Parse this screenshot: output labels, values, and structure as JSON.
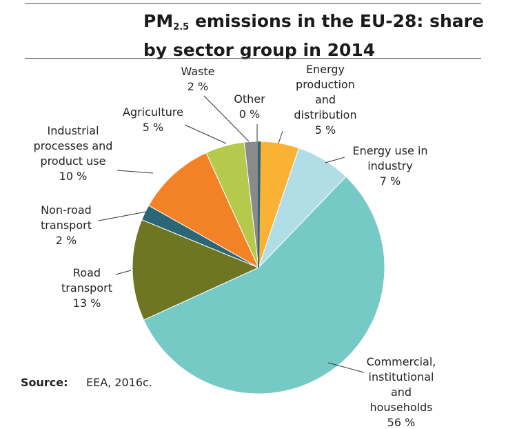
{
  "title": {
    "prefix": "PM",
    "subscript": "2.5",
    "rest": " emissions in the EU-28: share by sector group in 2014"
  },
  "source": {
    "label": "Source:",
    "text": "EEA, 2016c."
  },
  "chart_data": {
    "type": "pie",
    "title": "PM2.5 emissions in the EU-28: share by sector group in 2014",
    "unit": "%",
    "slices": [
      {
        "name": "Energy production and distribution",
        "value": 5,
        "color": "#f9b233",
        "label_lines": [
          "Energy",
          "production",
          "and",
          "distribution",
          "5 %"
        ]
      },
      {
        "name": "Energy use in industry",
        "value": 7,
        "color": "#b0dde6",
        "label_lines": [
          "Energy use in",
          "industry",
          "7 %"
        ]
      },
      {
        "name": "Commercial, institutional and households",
        "value": 56,
        "color": "#75cac6",
        "label_lines": [
          "Commercial,",
          "institutional",
          "and",
          "households",
          "56 %"
        ]
      },
      {
        "name": "Road transport",
        "value": 13,
        "color": "#6e7523",
        "label_lines": [
          "Road",
          "transport",
          "13 %"
        ]
      },
      {
        "name": "Non-road transport",
        "value": 2,
        "color": "#2b6677",
        "label_lines": [
          "Non-road",
          "transport",
          "2 %"
        ]
      },
      {
        "name": "Industrial processes and product use",
        "value": 10,
        "color": "#f38125",
        "label_lines": [
          "Industrial",
          "processes and",
          "product use",
          "10 %"
        ]
      },
      {
        "name": "Agriculture",
        "value": 5,
        "color": "#b5c94c",
        "label_lines": [
          "Agriculture",
          "5 %"
        ]
      },
      {
        "name": "Waste",
        "value": 2,
        "color": "#8a8a8a",
        "label_lines": [
          "Waste",
          "2 %"
        ]
      },
      {
        "name": "Other",
        "value": 0,
        "color": "#2b6677",
        "label_lines": [
          "Other",
          "0 %"
        ]
      }
    ]
  }
}
